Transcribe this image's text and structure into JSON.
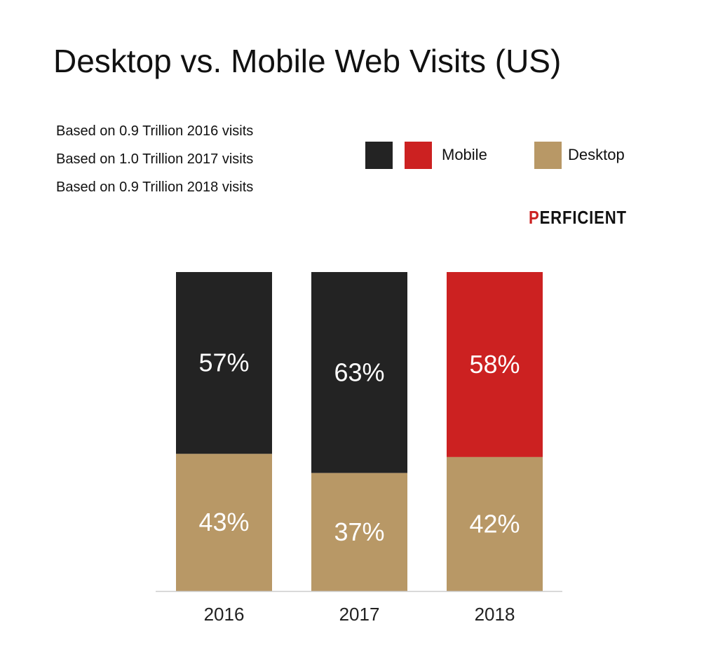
{
  "chart_data": {
    "type": "bar",
    "stacked": true,
    "title": "Desktop vs. Mobile Web Visits (US)",
    "notes": [
      "Based on 0.9 Trillion 2016 visits",
      "Based on 1.0 Trillion 2017 visits",
      "Based on 0.9 Trillion 2018 visits"
    ],
    "categories": [
      "2016",
      "2017",
      "2018"
    ],
    "series": [
      {
        "name": "Desktop",
        "values": [
          43,
          37,
          42
        ],
        "labels": [
          "43%",
          "37%",
          "42%"
        ],
        "color": "#b89866"
      },
      {
        "name": "Mobile",
        "values": [
          57,
          63,
          58
        ],
        "labels": [
          "57%",
          "63%",
          "58%"
        ],
        "colors": [
          "#232323",
          "#232323",
          "#cc2121"
        ]
      }
    ],
    "legend": {
      "placement": "top-right",
      "entries": [
        {
          "label": "",
          "color": "#232323"
        },
        {
          "label": "Mobile",
          "color": "#cc2121"
        },
        {
          "label": "Desktop",
          "color": "#b89866"
        }
      ]
    },
    "ylim": [
      0,
      100
    ],
    "grid": false,
    "brand": "PERFICIENT"
  }
}
